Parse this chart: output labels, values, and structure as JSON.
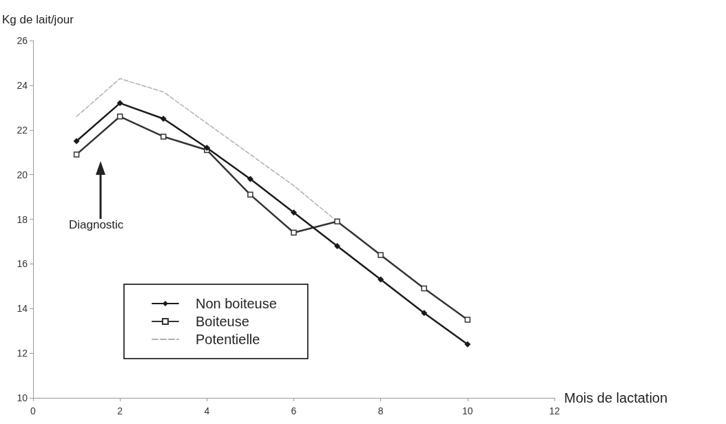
{
  "chart_data": {
    "type": "line",
    "xlabel": "Mois de lactation",
    "ylabel": "Kg de lait/jour",
    "x": [
      1,
      2,
      3,
      4,
      5,
      6,
      7,
      8,
      9,
      10
    ],
    "series": [
      {
        "name": "Non boiteuse",
        "color": "#1a1a1a",
        "marker": "diamond",
        "line_style": "solid",
        "values": [
          21.5,
          23.2,
          22.5,
          21.2,
          19.8,
          18.3,
          16.8,
          15.3,
          13.8,
          12.4
        ]
      },
      {
        "name": "Boiteuse",
        "color": "#333333",
        "marker": "square",
        "line_style": "solid",
        "values": [
          20.9,
          22.6,
          21.7,
          21.1,
          19.1,
          17.4,
          17.9,
          16.4,
          14.9,
          13.5
        ]
      },
      {
        "name": "Potentielle",
        "color": "#b0b0b0",
        "marker": "none",
        "line_style": "dashed",
        "values": [
          22.6,
          24.3,
          23.7,
          22.3,
          20.9,
          19.5,
          17.9,
          null,
          null,
          null
        ]
      }
    ],
    "xlim": [
      0,
      12
    ],
    "xticks": [
      0,
      2,
      4,
      6,
      8,
      10,
      12
    ],
    "ylim": [
      10,
      26
    ],
    "yticks": [
      10,
      12,
      14,
      16,
      18,
      20,
      22,
      24,
      26
    ],
    "grid": false,
    "legend": "bottom left",
    "annotations": [
      "Diagnostic"
    ]
  }
}
